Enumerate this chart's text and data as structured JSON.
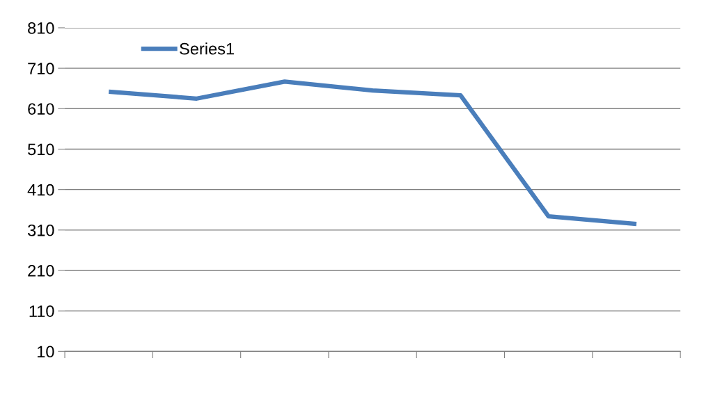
{
  "chart_data": {
    "type": "line",
    "categories": [
      null,
      null,
      null,
      null,
      null,
      null,
      null
    ],
    "series": [
      {
        "name": "Series1",
        "color": "#4a7ebb",
        "values": [
          652,
          635,
          677,
          655,
          643,
          344,
          325
        ]
      }
    ],
    "ylim": [
      10,
      810
    ],
    "yticks": [
      10,
      110,
      210,
      310,
      410,
      510,
      610,
      710,
      810
    ],
    "grid": "y",
    "legend": "top left",
    "tick_labels": "y",
    "marker": "none",
    "line_style": "solid"
  }
}
